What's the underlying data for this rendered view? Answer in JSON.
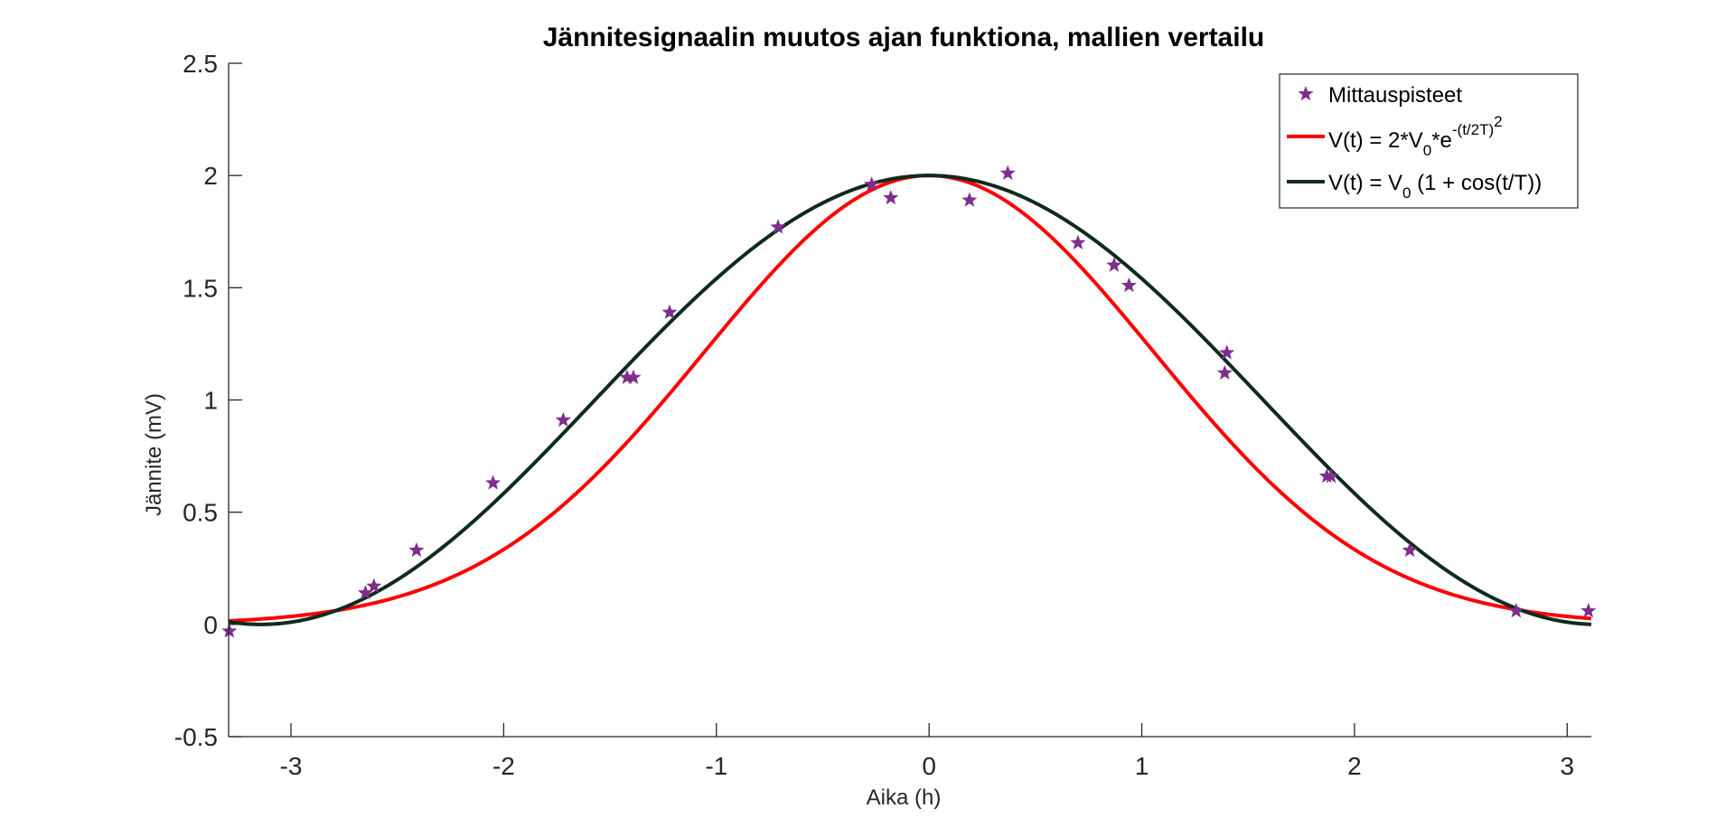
{
  "chart_data": {
    "type": "scatter",
    "title": "Jännitesignaalin muutos ajan funktiona, mallien vertailu",
    "xlabel": "Aika (h)",
    "ylabel": "Jännite (mV)",
    "xlim": [
      -3.2932,
      3.1135
    ],
    "ylim": [
      -0.5,
      2.5
    ],
    "xticks": [
      -3,
      -2,
      -1,
      0,
      1,
      2,
      3
    ],
    "yticks": [
      -0.5,
      0,
      0.5,
      1,
      1.5,
      2,
      2.5
    ],
    "xtick_labels": [
      "-3",
      "-2",
      "-1",
      "0",
      "1",
      "2",
      "3"
    ],
    "ytick_labels": [
      "-0.5",
      "0",
      "0.5",
      "1",
      "1.5",
      "2",
      "2.5"
    ],
    "grid": false,
    "legend_position": "top-right",
    "series": [
      {
        "name": "Mittauspisteet",
        "kind": "markers",
        "marker": "star",
        "color": "#7E2F8E",
        "points": [
          [
            -3.29,
            -0.03
          ],
          [
            -2.65,
            0.14
          ],
          [
            -2.61,
            0.17
          ],
          [
            -2.41,
            0.33
          ],
          [
            -2.05,
            0.63
          ],
          [
            -1.72,
            0.91
          ],
          [
            -1.42,
            1.1
          ],
          [
            -1.39,
            1.1
          ],
          [
            -1.22,
            1.39
          ],
          [
            -0.71,
            1.77
          ],
          [
            -0.27,
            1.96
          ],
          [
            -0.18,
            1.9
          ],
          [
            0.19,
            1.89
          ],
          [
            0.37,
            2.01
          ],
          [
            0.7,
            1.7
          ],
          [
            0.87,
            1.6
          ],
          [
            0.94,
            1.51
          ],
          [
            1.39,
            1.12
          ],
          [
            1.4,
            1.21
          ],
          [
            1.87,
            0.66
          ],
          [
            1.89,
            0.66
          ],
          [
            2.26,
            0.33
          ],
          [
            2.76,
            0.06
          ],
          [
            3.1,
            0.06
          ]
        ]
      },
      {
        "name": "V(t) = 2*V0*e^-(t/2T)^2",
        "kind": "line",
        "model": "gauss",
        "color": "#FF0000",
        "params": {
          "V0": 1.0,
          "T": 1.0571
        }
      },
      {
        "name": "V(t) = V0 (1 + cos(t/T))",
        "kind": "line",
        "model": "cos",
        "color": "#0E2B1E",
        "params": {
          "V0": 1.0,
          "T": 1.0
        }
      }
    ],
    "legend": {
      "entry1": "Mittauspisteet",
      "entry2": {
        "a": "V(t) = 2*V",
        "b": "0",
        "c": "*e",
        "d": "-(t/2T)",
        "e": "2"
      },
      "entry3": {
        "a": "V(t) = V",
        "b": "0",
        "c": " (1 + cos(t/T))"
      }
    }
  }
}
